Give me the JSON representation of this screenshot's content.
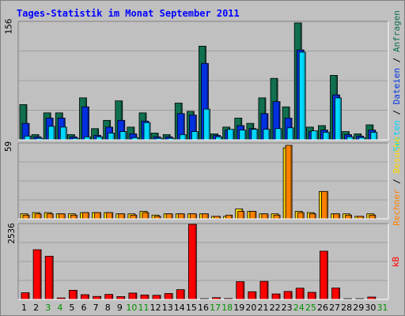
{
  "chart_data": {
    "type": "bar",
    "title": "Tages-Statistik im Monat September 2011",
    "categories": [
      "1",
      "2",
      "3",
      "4",
      "5",
      "6",
      "7",
      "8",
      "9",
      "10",
      "11",
      "12",
      "13",
      "14",
      "15",
      "16",
      "17",
      "18",
      "19",
      "20",
      "21",
      "22",
      "23",
      "24",
      "25",
      "26",
      "27",
      "28",
      "29",
      "30",
      "31"
    ],
    "weekend_days": [
      "3",
      "4",
      "10",
      "11",
      "17",
      "18",
      "24",
      "25",
      "31"
    ],
    "panels": [
      {
        "max_label": "156",
        "max": 156,
        "series": [
          {
            "name": "Anfragen",
            "color": "#107050",
            "values": [
              47,
              7,
              36,
              36,
              7,
              56,
              15,
              26,
              52,
              17,
              36,
              9,
              7,
              49,
              38,
              125,
              8,
              17,
              29,
              22,
              56,
              82,
              44,
              156,
              17,
              19,
              86,
              11,
              8,
              20,
              0
            ]
          },
          {
            "name": "Dateien",
            "color": "#0030e0",
            "values": [
              22,
              4,
              29,
              29,
              4,
              44,
              6,
              17,
              26,
              8,
              25,
              4,
              4,
              35,
              33,
              102,
              6,
              13,
              19,
              15,
              35,
              51,
              29,
              120,
              11,
              13,
              60,
              7,
              5,
              13,
              0
            ]
          },
          {
            "name": "Seiten",
            "color": "#00d8ff",
            "values": [
              5,
              2,
              18,
              17,
              2,
              4,
              4,
              9,
              11,
              3,
              23,
              2,
              2,
              7,
              11,
              41,
              4,
              14,
              13,
              14,
              14,
              15,
              16,
              117,
              12,
              10,
              56,
              4,
              3,
              10,
              0
            ]
          }
        ]
      },
      {
        "max_label": "59",
        "max": 59,
        "series": [
          {
            "name": "Besuche",
            "color": "#ffd800",
            "values": [
              4,
              5,
              5,
              4,
              4,
              5,
              5,
              5,
              4,
              4,
              6,
              3,
              4,
              4,
              4,
              4,
              2,
              2,
              8,
              6,
              4,
              4,
              57,
              6,
              5,
              22,
              4,
              4,
              2,
              4,
              0
            ]
          },
          {
            "name": "Rechner",
            "color": "#ff8000",
            "values": [
              3,
              4,
              4,
              4,
              3,
              5,
              5,
              5,
              4,
              3,
              5,
              2,
              4,
              4,
              4,
              4,
              2,
              3,
              6,
              6,
              4,
              3,
              59,
              5,
              4,
              22,
              4,
              3,
              2,
              3,
              0
            ]
          }
        ]
      },
      {
        "max_label": "2536",
        "max": 2536,
        "series": [
          {
            "name": "kB",
            "color": "#ff0000",
            "values": [
              225,
              1680,
              1460,
              50,
              310,
              160,
              100,
              170,
              95,
              215,
              150,
              140,
              200,
              330,
              2536,
              25,
              60,
              30,
              600,
              260,
              610,
              185,
              270,
              380,
              240,
              1630,
              385,
              25,
              25,
              80,
              0
            ]
          }
        ]
      }
    ]
  },
  "right_labels": {
    "p1": [
      {
        "text": "Seiten",
        "color": "#00d8ff"
      },
      {
        "text": " / ",
        "color": "#000000"
      },
      {
        "text": "Dateien",
        "color": "#0030e0"
      },
      {
        "text": " / ",
        "color": "#000000"
      },
      {
        "text": "Anfragen",
        "color": "#107050"
      }
    ],
    "p2": [
      {
        "text": "Rechner",
        "color": "#ff8000"
      },
      {
        "text": " / ",
        "color": "#000000"
      },
      {
        "text": "Besuche",
        "color": "#ffd800"
      }
    ],
    "p3": [
      {
        "text": "kB",
        "color": "#ff0000"
      }
    ]
  },
  "colors": {
    "panel_bg": "#c0c0c0",
    "grid": "#a0a0a0",
    "day_label": "#000000",
    "weekend_label": "#009000"
  }
}
